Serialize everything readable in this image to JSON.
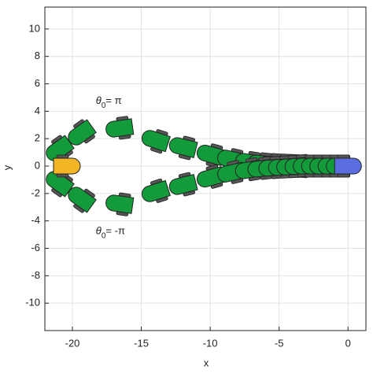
{
  "chart_data": {
    "type": "car-path",
    "xlabel": "x",
    "ylabel": "y",
    "xlim": [
      -22,
      1.3
    ],
    "ylim": [
      -12,
      11.6
    ],
    "xticks": [
      -20,
      -15,
      -10,
      -5,
      0
    ],
    "yticks": [
      -10,
      -8,
      -6,
      -4,
      -2,
      0,
      2,
      4,
      6,
      8,
      10
    ],
    "grid": true,
    "start": {
      "x": 0,
      "y": 0,
      "color": "#5b6ee0"
    },
    "goal": {
      "x": -20.4,
      "y": 0,
      "color": "#f2b526"
    },
    "series": [
      {
        "name": "upper",
        "color": "#139a3a",
        "x": [
          -0.6,
          -1.2,
          -1.8,
          -2.4,
          -3,
          -3.6,
          -4.2,
          -4.8,
          -5.5,
          -6.3,
          -7.2,
          -8.5,
          -10,
          -12,
          -14,
          -16.6,
          -19.4,
          -21
        ],
        "y": [
          0,
          0,
          0,
          0,
          0,
          0,
          0.05,
          0.08,
          0.12,
          0.18,
          0.28,
          0.5,
          0.85,
          1.4,
          1.9,
          2.75,
          2.35,
          1.2
        ],
        "annotation": {
          "symbol": "θ",
          "subscript": "0",
          "rest": "= π",
          "x": -18.3,
          "y": 4.7
        }
      },
      {
        "name": "lower",
        "color": "#139a3a",
        "x": [
          -0.6,
          -1.2,
          -1.8,
          -2.4,
          -3,
          -3.6,
          -4.2,
          -4.8,
          -5.5,
          -6.3,
          -7.2,
          -8.5,
          -10,
          -12,
          -14,
          -16.6,
          -19.4,
          -21
        ],
        "y": [
          0,
          0,
          0,
          0,
          0,
          0,
          -0.05,
          -0.08,
          -0.12,
          -0.18,
          -0.28,
          -0.5,
          -0.85,
          -1.4,
          -1.9,
          -2.75,
          -2.35,
          -1.2
        ],
        "annotation": {
          "symbol": "θ",
          "subscript": "0",
          "rest": "= -π",
          "x": -18.3,
          "y": -4.8
        }
      }
    ]
  }
}
